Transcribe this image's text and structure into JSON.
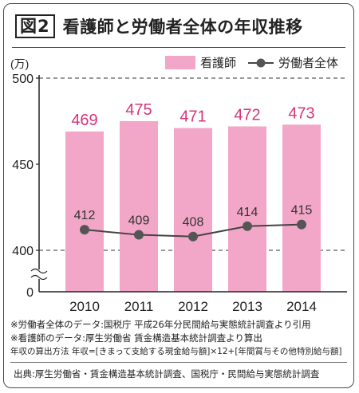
{
  "figure": {
    "badge": "図2",
    "title": "看護師と労働者全体の年収推移"
  },
  "colors": {
    "bar": "#f3a7c8",
    "bar_label": "#d6347a",
    "line": "#444444",
    "point": "#555555",
    "point_label": "#333333",
    "axis": "#222222",
    "grid": "#333333"
  },
  "chart_data": {
    "type": "bar",
    "categories": [
      "2010",
      "2011",
      "2012",
      "2013",
      "2014"
    ],
    "series": [
      {
        "name": "看護師",
        "kind": "bar",
        "values": [
          469,
          475,
          471,
          472,
          473
        ]
      },
      {
        "name": "労働者全体",
        "kind": "line",
        "values": [
          412,
          409,
          408,
          414,
          415
        ]
      }
    ],
    "unit_label": "(万)",
    "yticks": [
      400,
      450,
      500
    ],
    "ylim": [
      400,
      500
    ],
    "y_axis_break": true,
    "y_baseline_label": "0",
    "grid": "dashed at 400 and 500",
    "legend_position": "top-right"
  },
  "notes": [
    "※労働者全体のデータ:国税庁 平成26年分民間給与実態統計調査より引用",
    "※看護師のデータ:厚生労働省 賃金構造基本統計調査より算出",
    "年収の算出方法 年収=[きまって支給する現金給与額]×12+[年間賞与その他特別給与額]"
  ],
  "source": "出典:厚生労働省・賃金構造基本統計調査、国税庁・民間給与実態統計調査"
}
